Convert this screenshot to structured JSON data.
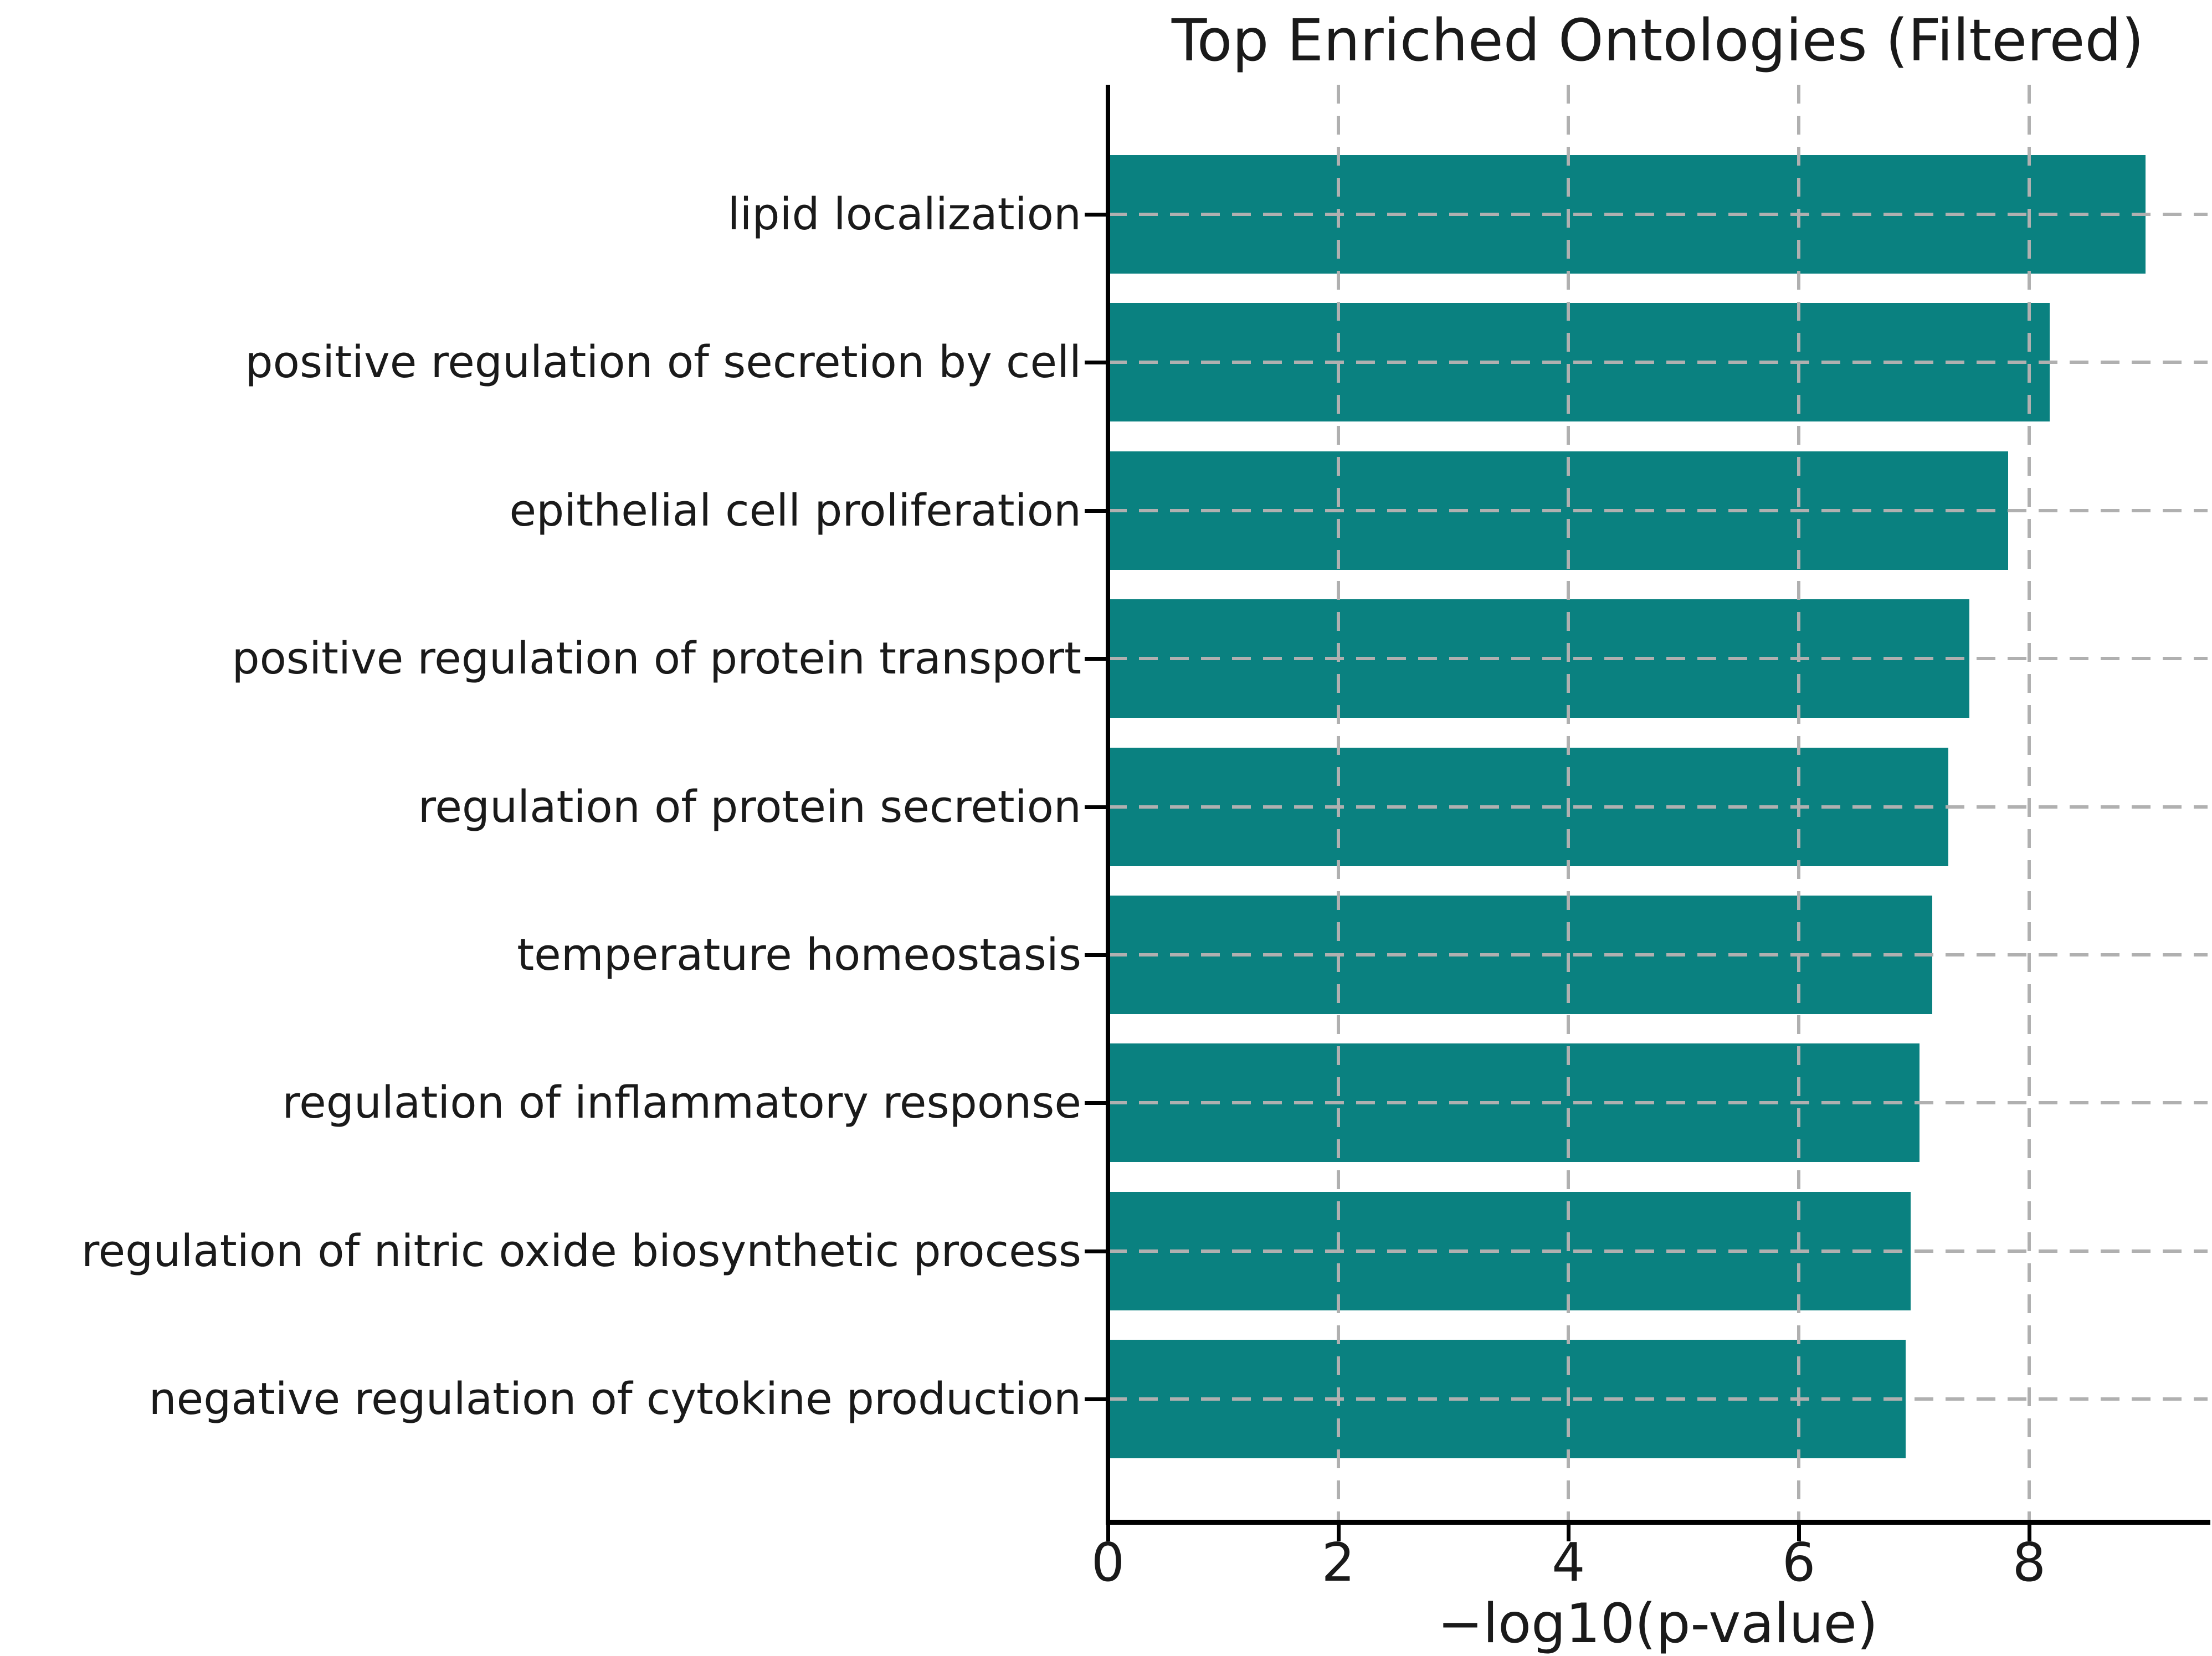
{
  "chart_data": {
    "type": "bar",
    "orientation": "horizontal",
    "title": "Top Enriched Ontologies (Filtered)",
    "xlabel": "−log10(p-value)",
    "ylabel": "",
    "categories": [
      "lipid localization",
      "positive regulation of secretion by cell",
      "epithelial cell proliferation",
      "positive regulation of protein transport",
      "regulation of protein secretion",
      "temperature homeostasis",
      "regulation of inflammatory response",
      "regulation of nitric oxide biosynthetic process",
      "negative regulation of cytokine production"
    ],
    "values": [
      9.01,
      8.18,
      7.82,
      7.48,
      7.3,
      7.16,
      7.05,
      6.97,
      6.93
    ],
    "xlim": [
      0,
      9.55
    ],
    "xticks": [
      0,
      2,
      4,
      6,
      8
    ],
    "xtick_labels": [
      "0",
      "2",
      "4",
      "6",
      "8"
    ],
    "bar_color": "#0a8180",
    "grid": {
      "style": "dashed",
      "color": "#b0b0b0",
      "x_gridlines": true,
      "y_gridlines": true,
      "drawn_over_bars": true
    },
    "spines": [
      "left",
      "bottom"
    ],
    "legend": null
  }
}
